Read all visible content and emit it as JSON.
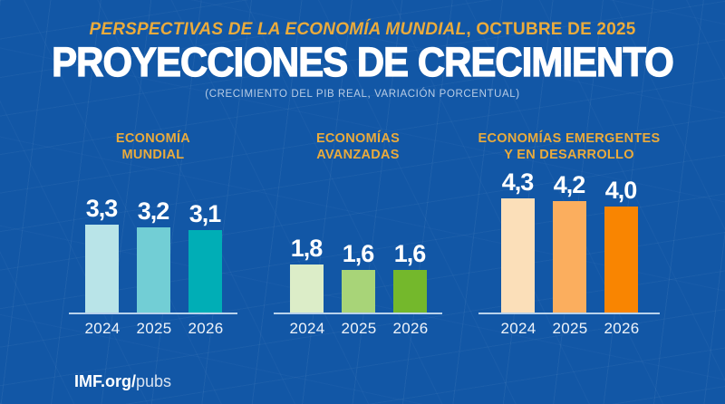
{
  "header": {
    "kicker_italic": "PERSPECTIVAS DE LA ECONOMÍA MUNDIAL",
    "kicker_rest": ", OCTUBRE DE 2025",
    "title": "PROYECCIONES DE CRECIMIENTO",
    "subtitle": "(CRECIMIENTO DEL PIB REAL, VARIACIÓN PORCENTUAL)"
  },
  "footer": {
    "link_bold": "IMF.org/",
    "link_light": "pubs"
  },
  "colors": {
    "background": "#1257A6",
    "gold": "#EAAB3C",
    "axis_line": "#D6E8F8",
    "value_text": "#FFFFFF"
  },
  "chart_data": [
    {
      "type": "bar",
      "title": "ECONOMÍA MUNDIAL",
      "title_lines": [
        "ECONOMÍA",
        "MUNDIAL"
      ],
      "categories": [
        "2024",
        "2025",
        "2026"
      ],
      "values": [
        3.3,
        3.2,
        3.1
      ],
      "value_labels": [
        "3,3",
        "3,2",
        "3,1"
      ],
      "bar_colors": [
        "#B9E4E8",
        "#72CED5",
        "#00AEB6"
      ],
      "xlabel": "",
      "ylabel": "",
      "ylim": [
        0,
        4.5
      ],
      "grid": false,
      "legend": "none"
    },
    {
      "type": "bar",
      "title": "ECONOMÍAS AVANZADAS",
      "title_lines": [
        "ECONOMÍAS",
        "AVANZADAS"
      ],
      "categories": [
        "2024",
        "2025",
        "2026"
      ],
      "values": [
        1.8,
        1.6,
        1.6
      ],
      "value_labels": [
        "1,8",
        "1,6",
        "1,6"
      ],
      "bar_colors": [
        "#DCEDC8",
        "#A8D478",
        "#74B82C"
      ],
      "xlabel": "",
      "ylabel": "",
      "ylim": [
        0,
        4.5
      ],
      "grid": false,
      "legend": "none"
    },
    {
      "type": "bar",
      "title": "ECONOMÍAS EMERGENTES Y EN DESARROLLO",
      "title_lines": [
        "ECONOMÍAS EMERGENTES",
        "Y EN DESARROLLO"
      ],
      "categories": [
        "2024",
        "2025",
        "2026"
      ],
      "values": [
        4.3,
        4.2,
        4.0
      ],
      "value_labels": [
        "4,3",
        "4,2",
        "4,0"
      ],
      "bar_colors": [
        "#FBDFB9",
        "#FBAE5E",
        "#F98501"
      ],
      "xlabel": "",
      "ylabel": "",
      "ylim": [
        0,
        4.5
      ],
      "grid": false,
      "legend": "none"
    }
  ]
}
